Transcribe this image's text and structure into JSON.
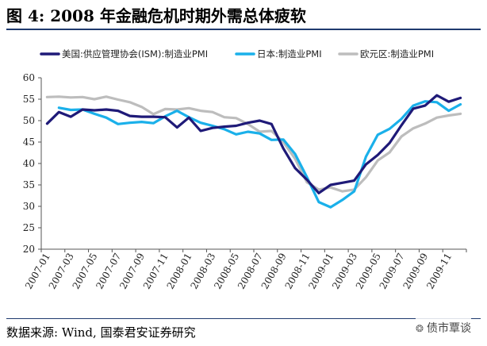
{
  "title": "图 4: 2008 年金融危机时期外需总体疲软",
  "source": "数据来源: Wind, 国泰君安证券研究",
  "watermark": {
    "logo_icon": "wechat-icon",
    "text": "债市覃谈"
  },
  "chart_data": {
    "type": "line",
    "title": "图 4: 2008 年金融危机时期外需总体疲软",
    "xlabel": "",
    "ylabel": "",
    "ylim": [
      20,
      60
    ],
    "yticks": [
      20,
      25,
      30,
      35,
      40,
      45,
      50,
      55,
      60
    ],
    "grid": false,
    "legend_position": "top",
    "categories": [
      "2007-01",
      "2007-02",
      "2007-03",
      "2007-04",
      "2007-05",
      "2007-06",
      "2007-07",
      "2007-08",
      "2007-09",
      "2007-10",
      "2007-11",
      "2007-12",
      "2008-01",
      "2008-02",
      "2008-03",
      "2008-04",
      "2008-05",
      "2008-06",
      "2008-07",
      "2008-08",
      "2008-09",
      "2008-10",
      "2008-11",
      "2008-12",
      "2009-01",
      "2009-02",
      "2009-03",
      "2009-04",
      "2009-05",
      "2009-06",
      "2009-07",
      "2009-08",
      "2009-09",
      "2009-10",
      "2009-11",
      "2009-12"
    ],
    "tick_labels": [
      "2007-01",
      "2007-03",
      "2007-05",
      "2007-07",
      "2007-09",
      "2007-11",
      "2008-01",
      "2008-03",
      "2008-05",
      "2008-07",
      "2008-09",
      "2008-11",
      "2009-01",
      "2009-03",
      "2009-05",
      "2009-07",
      "2009-09",
      "2009-11"
    ],
    "series": [
      {
        "name": "美国:供应管理协会(ISM):制造业PMI",
        "color": "#1f1a78",
        "values": [
          49.3,
          52.0,
          50.9,
          52.6,
          52.4,
          52.6,
          52.3,
          51.1,
          50.9,
          50.9,
          50.8,
          48.4,
          50.7,
          47.6,
          48.3,
          48.6,
          48.8,
          49.5,
          50.0,
          49.2,
          43.5,
          38.9,
          36.2,
          33.1,
          35.0,
          35.5,
          36.0,
          39.8,
          42.0,
          44.8,
          48.9,
          52.8,
          53.5,
          55.9,
          54.4,
          55.3
        ]
      },
      {
        "name": "日本:制造业PMI",
        "color": "#1ab0ea",
        "values": [
          null,
          53.0,
          52.5,
          52.6,
          51.6,
          50.7,
          49.2,
          49.5,
          49.7,
          49.4,
          51.0,
          52.3,
          50.8,
          49.5,
          48.8,
          48.0,
          46.8,
          47.4,
          47.0,
          45.5,
          45.6,
          42.2,
          36.8,
          31.0,
          29.8,
          31.5,
          33.5,
          41.6,
          46.7,
          48.1,
          50.4,
          53.5,
          54.5,
          54.3,
          52.3,
          53.8
        ]
      },
      {
        "name": "欧元区:制造业PMI",
        "color": "#bdbdbd",
        "values": [
          55.5,
          55.6,
          55.4,
          55.5,
          55.0,
          55.6,
          54.9,
          54.3,
          53.2,
          51.5,
          52.7,
          52.6,
          52.9,
          52.3,
          52.0,
          50.8,
          50.6,
          49.2,
          47.4,
          47.6,
          45.0,
          41.1,
          35.6,
          33.9,
          34.4,
          33.5,
          33.9,
          36.8,
          40.7,
          42.6,
          46.3,
          48.2,
          49.3,
          50.7,
          51.2,
          51.6
        ]
      }
    ]
  }
}
